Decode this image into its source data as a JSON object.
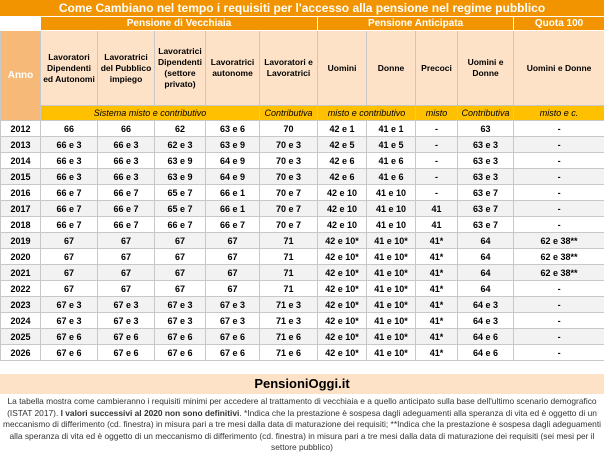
{
  "title": "Come Cambiano nel tempo i requisiti per l'accesso alla pensione nel regime pubblico",
  "groups": {
    "vecchiaia": "Pensione di Vecchiaia",
    "anticipata": "Pensione Anticipata",
    "quota": "Quota 100"
  },
  "headers": {
    "anno": "Anno",
    "c1": "Lavoratori Dipendenti ed Autonomi",
    "c2": "Lavoratrici del Pubblico impiego",
    "c3": "Lavoratrici Dipendenti (settore privato)",
    "c4": "Lavoratrici autonome",
    "c5": "Lavoratori e Lavoratrici",
    "c6": "Uomini",
    "c7": "Donne",
    "c8": "Precoci",
    "c9": "Uomini e Donne",
    "c10": "Uomini e Donne"
  },
  "subheaders": {
    "sistema": "Sistema misto e contributivo",
    "contributiva1": "Contributiva",
    "misto": "misto e contributivo",
    "misto2": "misto",
    "contributiva2": "Contributiva",
    "mistoe": "misto e c."
  },
  "rows": [
    [
      "2012",
      "66",
      "66",
      "62",
      "63 e 6",
      "70",
      "42 e 1",
      "41 e 1",
      "-",
      "63",
      "-"
    ],
    [
      "2013",
      "66 e 3",
      "66 e 3",
      "62 e 3",
      "63 e 9",
      "70 e 3",
      "42 e 5",
      "41 e 5",
      "-",
      "63 e 3",
      "-"
    ],
    [
      "2014",
      "66 e 3",
      "66 e 3",
      "63 e 9",
      "64 e 9",
      "70 e 3",
      "42 e 6",
      "41 e 6",
      "-",
      "63 e 3",
      "-"
    ],
    [
      "2015",
      "66 e 3",
      "66 e 3",
      "63 e 9",
      "64 e 9",
      "70 e 3",
      "42 e 6",
      "41 e 6",
      "-",
      "63 e 3",
      "-"
    ],
    [
      "2016",
      "66 e 7",
      "66 e 7",
      "65 e 7",
      "66 e 1",
      "70 e 7",
      "42 e 10",
      "41 e 10",
      "-",
      "63 e 7",
      "-"
    ],
    [
      "2017",
      "66 e 7",
      "66 e 7",
      "65 e 7",
      "66 e 1",
      "70 e 7",
      "42 e 10",
      "41 e 10",
      "41",
      "63 e 7",
      "-"
    ],
    [
      "2018",
      "66 e 7",
      "66 e 7",
      "66 e 7",
      "66 e 7",
      "70 e 7",
      "42 e 10",
      "41 e 10",
      "41",
      "63 e 7",
      "-"
    ],
    [
      "2019",
      "67",
      "67",
      "67",
      "67",
      "71",
      "42 e 10*",
      "41 e 10*",
      "41*",
      "64",
      "62 e 38**"
    ],
    [
      "2020",
      "67",
      "67",
      "67",
      "67",
      "71",
      "42 e 10*",
      "41 e 10*",
      "41*",
      "64",
      "62 e 38**"
    ],
    [
      "2021",
      "67",
      "67",
      "67",
      "67",
      "71",
      "42 e 10*",
      "41 e 10*",
      "41*",
      "64",
      "62 e 38**"
    ],
    [
      "2022",
      "67",
      "67",
      "67",
      "67",
      "71",
      "42 e 10*",
      "41 e 10*",
      "41*",
      "64",
      "-"
    ],
    [
      "2023",
      "67 e 3",
      "67 e 3",
      "67 e 3",
      "67 e 3",
      "71 e 3",
      "42 e 10*",
      "41 e 10*",
      "41*",
      "64 e 3",
      "-"
    ],
    [
      "2024",
      "67 e 3",
      "67 e 3",
      "67 e 3",
      "67 e 3",
      "71 e 3",
      "42 e 10*",
      "41 e 10*",
      "41*",
      "64 e 3",
      "-"
    ],
    [
      "2025",
      "67 e 6",
      "67 e 6",
      "67 e 6",
      "67 e 6",
      "71 e 6",
      "42 e 10*",
      "41 e 10*",
      "41*",
      "64 e 6",
      "-"
    ],
    [
      "2026",
      "67 e 6",
      "67 e 6",
      "67 e 6",
      "67 e 6",
      "71 e 6",
      "42 e 10*",
      "41 e 10*",
      "41*",
      "64 e 6",
      "-"
    ]
  ],
  "brand": "PensioniOggi.it",
  "note": {
    "part1": "La tabella mostra come cambieranno i requisiti minimi per accedere al trattamento di vecchiaia e a quello anticipato sulla base dell'ultimo scenario demografico (ISTAT 2017).",
    "bold": " I valori successivi al 2020 non sono definitivi",
    "part2": ". *Indica che la prestazione è sospesa dagli adeguamenti alla speranza di vita ed è oggetto di un meccanismo di differimento (cd. finestra) in misura pari a tre mesi dalla data di maturazione dei requisiti; **Indica che la prestazione è sospesa dagli adeguamenti alla speranza di vita ed è oggetto di un meccanismo di differimento (cd. finestra) in misura pari a tre mesi dalla data di maturazione dei requisiti (sei mesi per il settore pubblico)"
  },
  "colors": {
    "orange": "#f29400",
    "header_bg": "#fde2c7",
    "sub_bg": "#ffc000"
  }
}
